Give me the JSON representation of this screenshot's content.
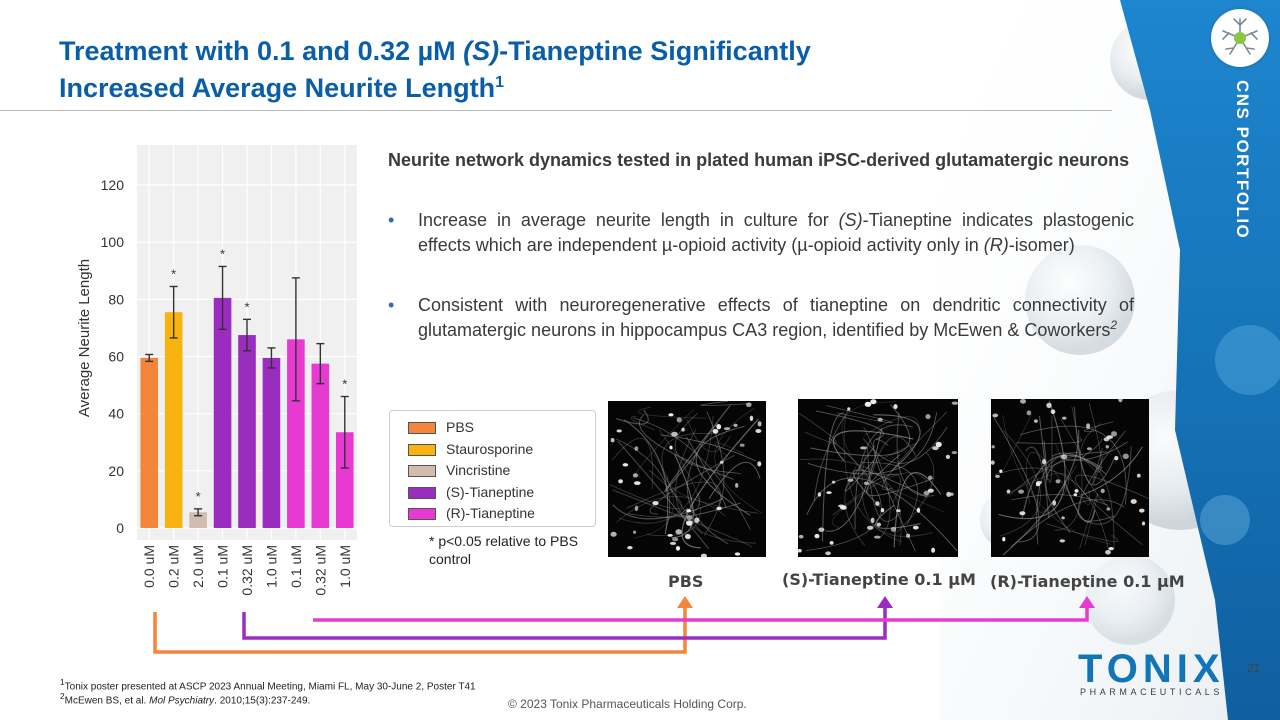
{
  "slide": {
    "title_part1": "Treatment with 0.1 and 0.32 µM ",
    "title_italic": "(S)",
    "title_part2": "-Tianeptine Significantly",
    "title_line2": "Increased Average Neurite Length",
    "title_sup": "1",
    "side_label": "CNS PORTFOLIO",
    "page_number": "21",
    "copyright": "© 2023 Tonix Pharmaceuticals Holding Corp.",
    "brand": "TONIX",
    "brand_sub": "PHARMACEUTICALS",
    "colors": {
      "title": "#0a5ea8",
      "banner": "#1a7cc4",
      "accent_orange": "#f4853c",
      "accent_purple": "#9a2cc0",
      "accent_magenta": "#e63ad2"
    }
  },
  "text": {
    "heading": "Neurite network dynamics tested in plated human iPSC-derived glutamatergic neurons",
    "bullet1_a": "Increase in average neurite length in culture for ",
    "bullet1_i": "(S)",
    "bullet1_b": "-Tianeptine indicates plastogenic effects which are independent µ-opioid activity (µ-opioid activity only in ",
    "bullet1_i2": "(R)",
    "bullet1_c": "-isomer)",
    "bullet2": "Consistent with neuroregenerative effects of tianeptine on dendritic connectivity of glutamatergic neurons in hippocampus CA3 region, identified by McEwen & Coworkers",
    "bullet2_sup": "2"
  },
  "legend": {
    "items": [
      {
        "label": "PBS",
        "color": "#f4853c"
      },
      {
        "label": "Staurosporine",
        "color": "#f8b40e"
      },
      {
        "label": "Vincristine",
        "color": "#d2bcb0"
      },
      {
        "label": "(S)-Tianeptine",
        "color": "#9a2cc0"
      },
      {
        "label": "(R)-Tianeptine",
        "color": "#e63ad2"
      }
    ],
    "note": "* p<0.05 relative to PBS control"
  },
  "images": [
    {
      "caption": "PBS"
    },
    {
      "caption": "(S)-Tianeptine 0.1 µM"
    },
    {
      "caption": "(R)-Tianeptine 0.1 µM"
    }
  ],
  "footnotes": {
    "fn1": "Tonix poster presented at ASCP 2023 Annual Meeting, Miami FL, May 30-June 2, Poster T41",
    "fn1_sup": "1",
    "fn2_a": "McEwen BS, et al. ",
    "fn2_i": "Mol Psychiatry",
    "fn2_b": ". 2010;15(3):237-249.",
    "fn2_sup": "2"
  },
  "chart_data": {
    "type": "bar",
    "ylabel": "Average Neurite Length",
    "ylim": [
      0,
      135
    ],
    "yticks": [
      0,
      20,
      40,
      60,
      80,
      100,
      120
    ],
    "grid": true,
    "categories": [
      "0.0 uM",
      "0.2 uM",
      "2.0 uM",
      "0.1 uM",
      "0.32 uM",
      "1.0 uM",
      "0.1 uM",
      "0.32 uM",
      "1.0 uM"
    ],
    "values": [
      59.5,
      75.5,
      5.5,
      80.5,
      67.5,
      59.5,
      66,
      57.5,
      33.5
    ],
    "errors": [
      1.2,
      9,
      1.2,
      11,
      5.5,
      3.5,
      21.5,
      7,
      12.5
    ],
    "significant": [
      false,
      true,
      true,
      true,
      true,
      false,
      false,
      false,
      true
    ],
    "colors": [
      "#f4853c",
      "#f8b40e",
      "#d2bcb0",
      "#9a2cc0",
      "#9a2cc0",
      "#9a2cc0",
      "#e63ad2",
      "#e63ad2",
      "#e63ad2"
    ]
  }
}
